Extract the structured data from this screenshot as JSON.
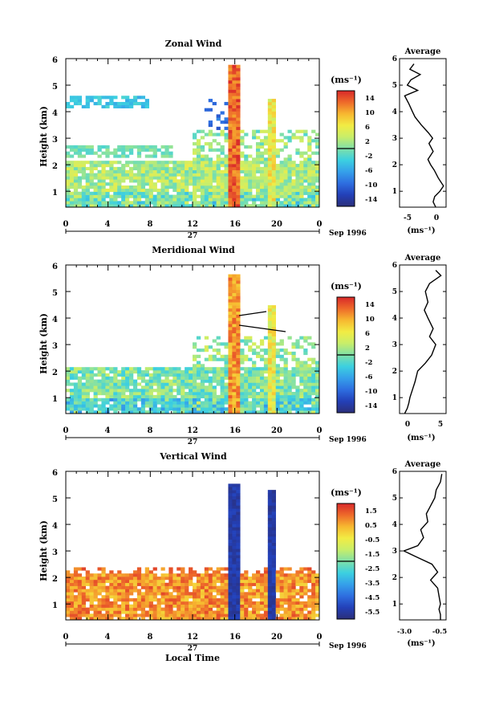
{
  "panels": [
    {
      "title": "Zonal Wind",
      "ylabel": "Height (km)",
      "yticks": [
        "1",
        "2",
        "3",
        "4",
        "5",
        "6"
      ],
      "xticks": [
        "0",
        "4",
        "8",
        "12",
        "16",
        "20",
        "0"
      ],
      "day_label": "27",
      "date_label": "Sep 1996",
      "colorbar_unit": "(ms⁻¹)",
      "colorbar_ticks": [
        "14",
        "10",
        "6",
        "2",
        "-2",
        "-6",
        "-10",
        "-14"
      ],
      "avg_title": "Average",
      "avg_xticks": [
        "-5",
        "0"
      ],
      "avg_unit": "(ms⁻¹)"
    },
    {
      "title": "Meridional Wind",
      "ylabel": "Height (km)",
      "yticks": [
        "1",
        "2",
        "3",
        "4",
        "5",
        "6"
      ],
      "xticks": [
        "0",
        "4",
        "8",
        "12",
        "16",
        "20",
        "0"
      ],
      "day_label": "27",
      "date_label": "Sep 1996",
      "colorbar_unit": "(ms⁻¹)",
      "colorbar_ticks": [
        "14",
        "10",
        "6",
        "2",
        "-2",
        "-6",
        "-10",
        "-14"
      ],
      "avg_title": "Average",
      "avg_xticks": [
        "0",
        "5"
      ],
      "avg_unit": "(ms⁻¹)"
    },
    {
      "title": "Vertical Wind",
      "ylabel": "Height (km)",
      "yticks": [
        "1",
        "2",
        "3",
        "4",
        "5",
        "6"
      ],
      "xticks": [
        "0",
        "4",
        "8",
        "12",
        "16",
        "20",
        "0"
      ],
      "day_label": "27",
      "date_label": "Sep 1996",
      "colorbar_unit": "(ms⁻¹)",
      "colorbar_ticks": [
        "1.5",
        "0.5",
        "-0.5",
        "-1.5",
        "-2.5",
        "-3.5",
        "-4.5",
        "-5.5"
      ],
      "avg_title": "Average",
      "avg_xticks": [
        "-3.0",
        "-0.5"
      ],
      "avg_unit": "(ms⁻¹)",
      "xlabel": "Local Time"
    }
  ],
  "colors": {
    "cb_stops": [
      "#2b2f7a",
      "#2340b8",
      "#2e6ee0",
      "#35a0ea",
      "#3cd0e0",
      "#7fe0a8",
      "#c8ee6a",
      "#f2ec44",
      "#f7b830",
      "#ee6a2a",
      "#d8282a"
    ]
  },
  "chart_data": [
    {
      "type": "heatmap",
      "title": "Zonal Wind",
      "x_unit": "hour (local time)",
      "xlim": [
        0,
        24
      ],
      "ylim": [
        0.4,
        6.0
      ],
      "color_range": [
        -14,
        14
      ],
      "features": [
        {
          "hour": 16.0,
          "h_top": 5.8,
          "value": 14
        },
        {
          "hour": 19.6,
          "h_top": 4.5,
          "value": 8
        }
      ],
      "average_profile": {
        "xlim": [
          -7,
          2
        ],
        "height": [
          0.4,
          0.6,
          0.8,
          1.0,
          1.2,
          1.5,
          1.8,
          2.0,
          2.2,
          2.5,
          2.8,
          3.0,
          3.2,
          3.5,
          3.8,
          4.0,
          4.3,
          4.6,
          4.8,
          5.0,
          5.2,
          5.4,
          5.6,
          5.8
        ],
        "value": [
          0.0,
          -0.5,
          -0.2,
          0.8,
          1.5,
          0.5,
          -0.3,
          -1.0,
          -1.5,
          -0.5,
          -1.3,
          -0.6,
          -1.4,
          -2.8,
          -4.0,
          -4.5,
          -5.2,
          -6.0,
          -3.5,
          -5.5,
          -4.8,
          -3.0,
          -5.0,
          -4.2
        ]
      }
    },
    {
      "type": "heatmap",
      "title": "Meridional Wind",
      "x_unit": "hour (local time)",
      "xlim": [
        0,
        24
      ],
      "ylim": [
        0.4,
        6.0
      ],
      "color_range": [
        -14,
        14
      ],
      "features": [
        {
          "hour": 16.0,
          "h_top": 5.6,
          "value": 12
        },
        {
          "hour": 19.6,
          "h_top": 4.5,
          "value": 8
        }
      ],
      "average_profile": {
        "xlim": [
          -2,
          7
        ],
        "height": [
          0.4,
          0.6,
          0.8,
          1.0,
          1.3,
          1.6,
          2.0,
          2.3,
          2.6,
          3.0,
          3.3,
          3.6,
          4.0,
          4.3,
          4.6,
          5.0,
          5.3,
          5.6,
          5.8
        ],
        "value": [
          -1.0,
          -0.5,
          -0.2,
          0.0,
          0.5,
          1.0,
          1.5,
          3.0,
          4.2,
          5.0,
          3.8,
          4.5,
          3.5,
          2.8,
          3.5,
          3.0,
          3.8,
          6.0,
          5.0
        ]
      }
    },
    {
      "type": "heatmap",
      "title": "Vertical Wind",
      "x_unit": "hour (local time)",
      "xlim": [
        0,
        24
      ],
      "ylim": [
        0.4,
        6.0
      ],
      "color_range": [
        -5.5,
        1.5
      ],
      "features": [
        {
          "hour": 16.0,
          "h_top": 5.6,
          "value": -5.5
        },
        {
          "hour": 19.6,
          "h_top": 5.4,
          "value": -5.5
        }
      ],
      "average_profile": {
        "xlim": [
          -3.5,
          -0.2
        ],
        "height": [
          0.4,
          0.6,
          0.8,
          1.0,
          1.3,
          1.6,
          1.9,
          2.2,
          2.5,
          2.8,
          3.0,
          3.2,
          3.5,
          3.8,
          4.1,
          4.4,
          4.7,
          5.0,
          5.3,
          5.6,
          5.9
        ],
        "value": [
          -0.6,
          -0.6,
          -0.7,
          -0.6,
          -0.7,
          -0.8,
          -1.3,
          -0.8,
          -1.2,
          -2.4,
          -3.2,
          -2.2,
          -1.8,
          -2.0,
          -1.5,
          -1.6,
          -1.3,
          -1.0,
          -0.9,
          -0.6,
          -0.5
        ]
      }
    }
  ]
}
